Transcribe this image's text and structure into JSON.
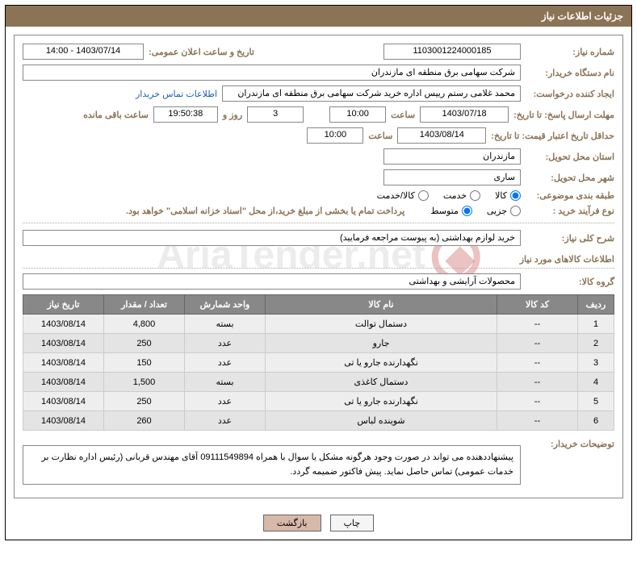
{
  "title_bar": "جزئیات اطلاعات نیاز",
  "labels": {
    "need_number": "شماره نیاز:",
    "announce_datetime": "تاریخ و ساعت اعلان عمومی:",
    "buyer_org": "نام دستگاه خریدار:",
    "requester": "ایجاد کننده درخواست:",
    "contact_link": "اطلاعات تماس خریدار",
    "deadline_reply": "مهلت ارسال پاسخ: تا تاریخ:",
    "hour": "ساعت",
    "days_and": "روز و",
    "hours_remaining": "ساعت باقی مانده",
    "min_price_validity": "حداقل تاریخ اعتبار قیمت: تا تاریخ:",
    "delivery_province": "استان محل تحویل:",
    "delivery_city": "شهر محل تحویل:",
    "subject_class": "طبقه بندی موضوعی:",
    "purchase_type": "نوع فرآیند خرید :",
    "treasury_note": "پرداخت تمام یا بخشی از مبلغ خرید،از محل \"اسناد خزانه اسلامی\" خواهد بود.",
    "need_summary": "شرح کلی نیاز:",
    "items_info": "اطلاعات کالاهای مورد نیاز",
    "goods_group": "گروه کالا:",
    "buyer_notes": "توضیحات خریدار:"
  },
  "fields": {
    "need_number": "1103001224000185",
    "announce_datetime": "1403/07/14 - 14:00",
    "buyer_org": "شرکت سهامی برق منطقه ای مازندران",
    "requester": "محمد غلامی رستم رییس اداره خرید شرکت سهامی برق منطقه ای مازندران",
    "deadline_date": "1403/07/18",
    "deadline_time": "10:00",
    "remaining_days": "3",
    "remaining_time": "19:50:38",
    "price_validity_date": "1403/08/14",
    "price_validity_time": "10:00",
    "delivery_province": "مازندران",
    "delivery_city": "ساری",
    "need_summary": "خرید لوازم بهداشتی (به پیوست مراجعه فرمایید)",
    "goods_group": "محصولات آرایشی و بهداشتی",
    "buyer_notes": "پیشنهاددهنده می تواند در صورت وجود هرگونه مشکل یا سوال با همراه 09111549894 آقای مهندس قربانی (رئیس اداره نظارت بر خدمات عمومی) تماس حاصل نماید. پیش فاکتور ضمیمه گردد."
  },
  "radios": {
    "subject": {
      "kala": "کالا",
      "khadamat": "خدمت",
      "kala_khadamat": "کالا/خدمت"
    },
    "purchase": {
      "jozei": "جزیی",
      "motavaset": "متوسط"
    }
  },
  "table": {
    "headers": {
      "row": "ردیف",
      "code": "کد کالا",
      "name": "نام کالا",
      "unit": "واحد شمارش",
      "qty": "تعداد / مقدار",
      "need_date": "تاریخ نیاز"
    },
    "rows": [
      {
        "n": "1",
        "code": "--",
        "name": "دستمال توالت",
        "unit": "بسته",
        "qty": "4,800",
        "date": "1403/08/14"
      },
      {
        "n": "2",
        "code": "--",
        "name": "جارو",
        "unit": "عدد",
        "qty": "250",
        "date": "1403/08/14"
      },
      {
        "n": "3",
        "code": "--",
        "name": "نگهدارنده جارو یا تی",
        "unit": "عدد",
        "qty": "150",
        "date": "1403/08/14"
      },
      {
        "n": "4",
        "code": "--",
        "name": "دستمال کاغذی",
        "unit": "بسته",
        "qty": "1,500",
        "date": "1403/08/14"
      },
      {
        "n": "5",
        "code": "--",
        "name": "نگهدارنده جارو یا تی",
        "unit": "عدد",
        "qty": "250",
        "date": "1403/08/14"
      },
      {
        "n": "6",
        "code": "--",
        "name": "شوینده لباس",
        "unit": "عدد",
        "qty": "260",
        "date": "1403/08/14"
      }
    ]
  },
  "buttons": {
    "print": "چاپ",
    "back": "بازگشت"
  },
  "watermark": "AriaTender.net"
}
